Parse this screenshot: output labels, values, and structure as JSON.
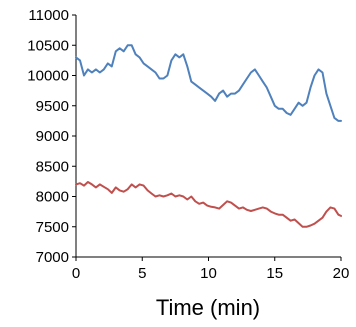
{
  "chart_data": {
    "type": "line",
    "title": "",
    "xlabel": "Time (min)",
    "ylabel": "",
    "xlim": [
      0,
      20
    ],
    "ylim": [
      7000,
      11000
    ],
    "xticks": [
      0,
      5,
      10,
      15,
      20
    ],
    "yticks": [
      7000,
      7500,
      8000,
      8500,
      9000,
      9500,
      10000,
      10500,
      11000
    ],
    "grid": false,
    "legend": "none",
    "series": [
      {
        "color": "#4f81bd",
        "x": [
          0,
          0.3,
          0.6,
          0.9,
          1.2,
          1.5,
          1.8,
          2.1,
          2.4,
          2.7,
          3.0,
          3.3,
          3.6,
          3.9,
          4.2,
          4.5,
          4.8,
          5.1,
          5.4,
          5.7,
          6.0,
          6.3,
          6.6,
          6.9,
          7.2,
          7.5,
          7.8,
          8.1,
          8.4,
          8.7,
          9.0,
          9.3,
          9.6,
          9.9,
          10.2,
          10.5,
          10.8,
          11.1,
          11.4,
          11.7,
          12.0,
          12.3,
          12.6,
          12.9,
          13.2,
          13.5,
          13.8,
          14.1,
          14.4,
          14.7,
          15.0,
          15.3,
          15.6,
          15.9,
          16.2,
          16.5,
          16.8,
          17.1,
          17.4,
          17.7,
          18.0,
          18.3,
          18.6,
          18.9,
          19.2,
          19.5,
          19.8,
          20.0
        ],
        "y": [
          10300,
          10250,
          10000,
          10100,
          10050,
          10100,
          10050,
          10100,
          10200,
          10150,
          10400,
          10450,
          10400,
          10500,
          10500,
          10350,
          10300,
          10200,
          10150,
          10100,
          10050,
          9950,
          9950,
          10000,
          10250,
          10350,
          10300,
          10350,
          10150,
          9900,
          9850,
          9800,
          9750,
          9700,
          9650,
          9580,
          9700,
          9750,
          9650,
          9700,
          9700,
          9750,
          9850,
          9950,
          10050,
          10100,
          10000,
          9900,
          9800,
          9650,
          9500,
          9450,
          9450,
          9380,
          9350,
          9450,
          9550,
          9500,
          9550,
          9800,
          10000,
          10100,
          10050,
          9700,
          9500,
          9300,
          9250,
          9250
        ]
      },
      {
        "color": "#c0504d",
        "x": [
          0,
          0.3,
          0.6,
          0.9,
          1.2,
          1.5,
          1.8,
          2.1,
          2.4,
          2.7,
          3.0,
          3.3,
          3.6,
          3.9,
          4.2,
          4.5,
          4.8,
          5.1,
          5.4,
          5.7,
          6.0,
          6.3,
          6.6,
          6.9,
          7.2,
          7.5,
          7.8,
          8.1,
          8.4,
          8.7,
          9.0,
          9.3,
          9.6,
          9.9,
          10.2,
          10.5,
          10.8,
          11.1,
          11.4,
          11.7,
          12.0,
          12.3,
          12.6,
          12.9,
          13.2,
          13.5,
          13.8,
          14.1,
          14.4,
          14.7,
          15.0,
          15.3,
          15.6,
          15.9,
          16.2,
          16.5,
          16.8,
          17.1,
          17.4,
          17.7,
          18.0,
          18.3,
          18.6,
          18.9,
          19.2,
          19.5,
          19.8,
          20.0
        ],
        "y": [
          8200,
          8220,
          8180,
          8240,
          8200,
          8150,
          8200,
          8160,
          8120,
          8060,
          8150,
          8100,
          8080,
          8120,
          8200,
          8150,
          8200,
          8180,
          8100,
          8050,
          8000,
          8020,
          8000,
          8020,
          8050,
          8000,
          8020,
          8000,
          7950,
          8000,
          7920,
          7880,
          7900,
          7850,
          7830,
          7820,
          7800,
          7860,
          7920,
          7900,
          7850,
          7800,
          7820,
          7780,
          7760,
          7780,
          7800,
          7820,
          7800,
          7750,
          7720,
          7700,
          7700,
          7650,
          7600,
          7620,
          7560,
          7500,
          7500,
          7520,
          7550,
          7600,
          7650,
          7750,
          7820,
          7800,
          7700,
          7680
        ]
      }
    ]
  }
}
